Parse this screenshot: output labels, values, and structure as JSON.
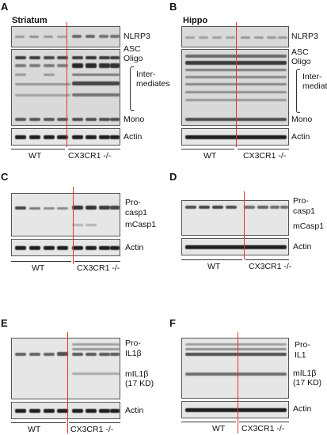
{
  "panels": {
    "A": {
      "letter": "A",
      "title": "Striatum"
    },
    "B": {
      "letter": "B",
      "title": "Hippo"
    },
    "C": {
      "letter": "C"
    },
    "D": {
      "letter": "D"
    },
    "E": {
      "letter": "E"
    },
    "F": {
      "letter": "F"
    }
  },
  "labels": {
    "nlrp3": "NLRP3",
    "asc": "ASC",
    "oligo": "Oligo",
    "intermediates": "Inter-\nmediates",
    "mono": "Mono",
    "actin": "Actin",
    "pro_casp1": "Pro-\ncasp1",
    "mcasp1": "mCasp1",
    "pro_il1b": "Pro-\nIL1β",
    "pro_il1": "Pro-\nIL1",
    "mil1b": "mIL1β\n(17 KD)"
  },
  "groups": {
    "wt": "WT",
    "ko": "CX3CR1 -/-"
  },
  "colors": {
    "divider": "#e8322a",
    "band": "#202020",
    "membrane": "#d9d9d9"
  }
}
